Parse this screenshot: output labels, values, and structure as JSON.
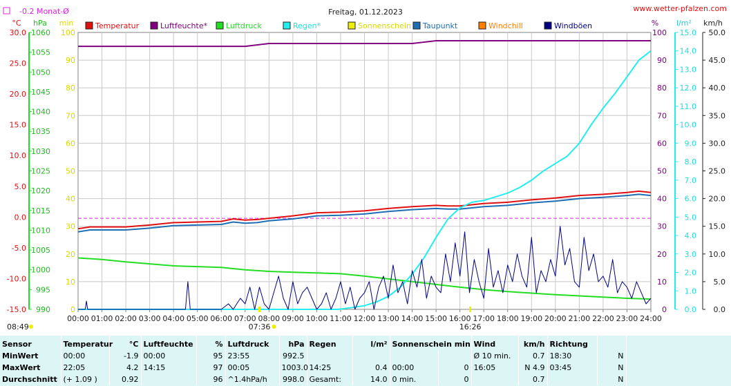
{
  "header": {
    "title": "Freitag, 01.12.2023",
    "website": "www.wetter-pfalzen.com",
    "monthly_avg_label": "-0.2 Monat-Ø"
  },
  "units": {
    "temp": "°C",
    "pressure": "hPa",
    "minutes": "min",
    "humidity": "%",
    "rain": "l/m²",
    "wind": "km/h"
  },
  "legend": [
    {
      "label": "Temperatur",
      "color": "#e01010"
    },
    {
      "label": "Luftfeuchte*",
      "color": "#800080"
    },
    {
      "label": "Luftdruck",
      "color": "#22dd22"
    },
    {
      "label": "Regen*",
      "color": "#22eeee"
    },
    {
      "label": "Sonnenschein",
      "color": "#eeee00"
    },
    {
      "label": "Taupunkt",
      "color": "#1e6eb4"
    },
    {
      "label": "Windchill",
      "color": "#ff8000"
    },
    {
      "label": "Windböen",
      "color": "#000080"
    }
  ],
  "markers": {
    "sunrise": "08:49",
    "solar_noon_left": "07:36",
    "solar_noon_right": "16:26"
  },
  "chart_data": {
    "type": "line",
    "x_ticks": [
      "00:00",
      "01:00",
      "02:00",
      "03:00",
      "04:00",
      "05:00",
      "06:00",
      "07:00",
      "08:00",
      "09:00",
      "10:00",
      "11:00",
      "12:00",
      "13:00",
      "14:00",
      "15:00",
      "16:00",
      "17:00",
      "18:00",
      "19:00",
      "20:00",
      "21:00",
      "22:00",
      "23:00",
      "24:00"
    ],
    "axes": {
      "temp": {
        "ticks": [
          "30.0",
          "25.0",
          "20.0",
          "15.0",
          "10.0",
          "5.0",
          "0.0",
          "-5.0",
          "-10.0",
          "-15.0"
        ],
        "range": [
          -15,
          30
        ]
      },
      "pressure": {
        "ticks": [
          "1060",
          "1055",
          "1050",
          "1045",
          "1040",
          "1035",
          "1030",
          "1025",
          "1020",
          "1015",
          "1010",
          "1005",
          "1000",
          "995",
          "990"
        ],
        "range": [
          990,
          1060
        ]
      },
      "minutes": {
        "ticks": [
          "100",
          "90",
          "80",
          "70",
          "60",
          "50",
          "40",
          "30",
          "20",
          "10",
          "0"
        ],
        "range": [
          0,
          100
        ]
      },
      "humidity": {
        "ticks": [
          "100",
          "90",
          "80",
          "70",
          "60",
          "50",
          "40",
          "30",
          "20",
          "10",
          "0"
        ],
        "range": [
          0,
          100
        ]
      },
      "rain": {
        "ticks": [
          "15.0",
          "14.0",
          "13.0",
          "12.0",
          "11.0",
          "10.0",
          "9.0",
          "8.0",
          "7.0",
          "6.0",
          "5.0",
          "4.0",
          "3.0",
          "2.0",
          "1.0",
          "0.0"
        ],
        "range": [
          0,
          15
        ]
      },
      "wind": {
        "ticks": [
          "50.0",
          "45.0",
          "40.0",
          "35.0",
          "30.0",
          "25.0",
          "20.0",
          "15.0",
          "10.0",
          "5.0",
          "0.0"
        ],
        "range": [
          0,
          50
        ]
      }
    },
    "monthly_avg_temp": -0.2,
    "series": [
      {
        "name": "Temperatur",
        "color": "#e01010",
        "axis": "temp",
        "x": [
          0,
          0.5,
          1,
          2,
          3,
          4,
          5,
          6,
          6.5,
          7,
          7.5,
          8,
          9,
          10,
          11,
          12,
          13,
          14,
          15,
          15.5,
          16,
          17,
          18,
          19,
          20,
          21,
          22,
          23,
          23.5,
          24
        ],
        "y": [
          -1.9,
          -1.6,
          -1.6,
          -1.6,
          -1.3,
          -0.9,
          -0.8,
          -0.7,
          -0.3,
          -0.5,
          -0.4,
          -0.2,
          0.2,
          0.7,
          0.8,
          1.0,
          1.4,
          1.7,
          1.9,
          1.8,
          1.8,
          2.2,
          2.4,
          2.8,
          3.1,
          3.5,
          3.7,
          4.0,
          4.2,
          4.0
        ]
      },
      {
        "name": "Taupunkt",
        "color": "#1e6eb4",
        "axis": "temp",
        "x": [
          0,
          0.5,
          1,
          2,
          3,
          4,
          5,
          6,
          6.5,
          7,
          7.5,
          8,
          9,
          10,
          11,
          12,
          13,
          14,
          15,
          15.5,
          16,
          17,
          18,
          19,
          20,
          21,
          22,
          23,
          23.5,
          24
        ],
        "y": [
          -2.4,
          -2.1,
          -2.1,
          -2.1,
          -1.8,
          -1.4,
          -1.3,
          -1.2,
          -0.8,
          -1.0,
          -0.9,
          -0.6,
          -0.3,
          0.2,
          0.3,
          0.5,
          0.9,
          1.2,
          1.4,
          1.3,
          1.3,
          1.7,
          1.9,
          2.3,
          2.6,
          3.0,
          3.2,
          3.5,
          3.7,
          3.5
        ]
      },
      {
        "name": "Luftfeuchte*",
        "color": "#800080",
        "axis": "humidity",
        "x": [
          0,
          2,
          4,
          6,
          7,
          8,
          9,
          10,
          12,
          14,
          15,
          16,
          17,
          18,
          20,
          22,
          24
        ],
        "y": [
          95,
          95,
          95,
          95,
          95,
          96,
          96,
          96,
          96,
          96,
          97,
          97,
          97,
          97,
          97,
          97,
          97
        ]
      },
      {
        "name": "Luftdruck",
        "color": "#22dd22",
        "axis": "pressure",
        "x": [
          0,
          1,
          2,
          3,
          4,
          5,
          6,
          7,
          8,
          9,
          10,
          11,
          12,
          13,
          14,
          15,
          16,
          17,
          18,
          19,
          20,
          21,
          22,
          23,
          24
        ],
        "y": [
          1003.0,
          1002.6,
          1002.0,
          1001.5,
          1001.0,
          1000.8,
          1000.6,
          1000.0,
          999.6,
          999.4,
          999.2,
          999.0,
          998.4,
          997.7,
          997.0,
          996.3,
          995.6,
          995.0,
          994.5,
          994.1,
          993.7,
          993.4,
          993.1,
          992.8,
          992.6
        ]
      },
      {
        "name": "Regen*",
        "color": "#22eeee",
        "axis": "rain",
        "x": [
          0,
          10.9,
          11.5,
          12,
          12.5,
          13,
          13.5,
          14,
          14.5,
          15,
          15.5,
          16,
          16.5,
          17,
          17.5,
          18,
          18.5,
          19,
          19.5,
          20,
          20.5,
          21,
          21.5,
          22,
          22.5,
          23,
          23.5,
          24
        ],
        "y": [
          0,
          0,
          0.1,
          0.2,
          0.4,
          0.7,
          1.2,
          1.9,
          2.8,
          3.9,
          4.9,
          5.5,
          5.8,
          5.9,
          6.1,
          6.3,
          6.6,
          7.0,
          7.5,
          7.9,
          8.3,
          9.0,
          10.0,
          10.9,
          11.7,
          12.6,
          13.5,
          14.0
        ]
      },
      {
        "name": "Windböen",
        "color": "#000080",
        "axis": "wind",
        "x": [
          0,
          0.3,
          0.35,
          0.4,
          0.5,
          4,
          4.5,
          4.6,
          4.7,
          4.9,
          5,
          6,
          6.3,
          6.5,
          6.8,
          7,
          7.2,
          7.4,
          7.6,
          7.8,
          8,
          8.2,
          8.4,
          8.6,
          8.8,
          9,
          9.2,
          9.4,
          9.6,
          9.8,
          10,
          10.2,
          10.4,
          10.6,
          10.8,
          11,
          11.2,
          11.4,
          11.6,
          11.8,
          12,
          12.2,
          12.4,
          12.6,
          12.8,
          13,
          13.2,
          13.4,
          13.6,
          13.8,
          14,
          14.2,
          14.4,
          14.6,
          14.8,
          15,
          15.2,
          15.4,
          15.6,
          15.8,
          16,
          16.2,
          16.4,
          16.6,
          16.8,
          17,
          17.2,
          17.4,
          17.6,
          17.8,
          18,
          18.2,
          18.4,
          18.6,
          18.8,
          19,
          19.2,
          19.4,
          19.6,
          19.8,
          20,
          20.2,
          20.4,
          20.6,
          20.8,
          21,
          21.2,
          21.4,
          21.6,
          21.8,
          22,
          22.2,
          22.4,
          22.6,
          22.8,
          23,
          23.2,
          23.4,
          23.6,
          23.8,
          24
        ],
        "y": [
          0,
          0,
          1.5,
          0,
          0,
          0,
          0,
          5,
          0,
          0,
          0,
          0,
          1,
          0,
          2,
          1,
          4,
          0,
          4,
          1,
          0,
          3,
          6,
          2,
          0,
          5,
          1,
          3,
          4,
          2,
          0,
          1,
          3,
          0,
          2,
          5,
          1,
          4,
          0,
          2,
          3,
          5,
          0,
          4,
          6,
          2,
          8,
          3,
          5,
          1,
          7,
          4,
          9,
          2,
          6,
          4,
          3,
          10,
          5,
          12,
          6,
          14,
          3,
          9,
          5,
          2,
          11,
          4,
          7,
          3,
          8,
          5,
          10,
          6,
          4,
          13,
          3,
          7,
          5,
          9,
          6,
          15,
          8,
          11,
          5,
          4,
          13,
          7,
          10,
          5,
          6,
          4,
          9,
          3,
          5,
          4,
          2,
          5,
          3,
          1,
          2
        ]
      }
    ]
  },
  "stats": {
    "headers": {
      "sensor": "Sensor",
      "temp": "Temperatur",
      "temp_unit": "°C",
      "hum": "Luftfeuchte",
      "hum_unit": "%",
      "press": "Luftdruck",
      "press_unit": "hPa",
      "rain": "Regen",
      "rain_unit": "l/m²",
      "sun": "Sonnenschein min",
      "wind": "Wind",
      "wind_unit": "km/h",
      "dir": "Richtung"
    },
    "rows": [
      {
        "label": "MinWert",
        "temp_time": "00:00",
        "temp_val": "-1.9",
        "hum_time": "00:00",
        "hum_val": "95",
        "press_time": "23:55",
        "press_val": "992.5",
        "rain_time": "",
        "rain_val": "",
        "sun_time": "",
        "sun_val": "",
        "wind_time": "Ø 10 min.",
        "wind_val": "0.7",
        "dir_time": "18:30",
        "dir_val": "N"
      },
      {
        "label": "MaxWert",
        "temp_time": "22:05",
        "temp_val": "4.2",
        "hum_time": "14:15",
        "hum_val": "97",
        "press_time": "00:05",
        "press_val": "1003.0",
        "rain_time": "14:25",
        "rain_val": "0.4",
        "sun_time": "00:00",
        "sun_val": "0",
        "wind_time": "16:05",
        "wind_val": "N 4.9",
        "dir_time": "03:45",
        "dir_val": "N"
      },
      {
        "label": "Durchschnitt",
        "temp_time": "(+ 1.09 )",
        "temp_val": "0.92",
        "hum_time": "",
        "hum_val": "96",
        "press_time": "^1.4hPa/h",
        "press_val": "998.0",
        "rain_time": "Gesamt:",
        "rain_val": "14.0",
        "sun_time": "0 min.",
        "sun_val": "0",
        "wind_time": "",
        "wind_val": "0.7",
        "dir_time": "",
        "dir_val": "N"
      }
    ]
  }
}
